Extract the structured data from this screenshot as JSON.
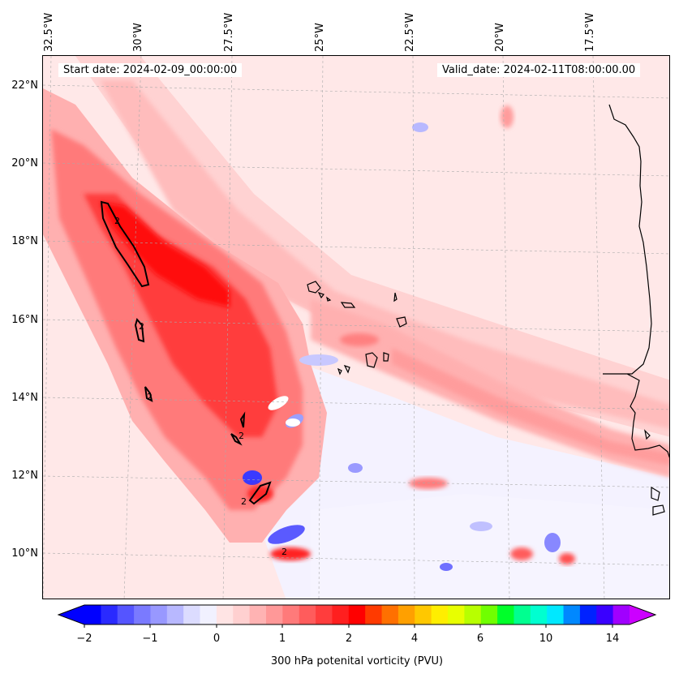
{
  "header": {
    "start_date": "Start date: 2024-02-09_00:00:00",
    "valid_date": "Valid_date: 2024-02-11T08:00:00.00"
  },
  "axes": {
    "longitude_labels": [
      "32.5°W",
      "30°W",
      "27.5°W",
      "25°W",
      "22.5°W",
      "20°W",
      "17.5°W"
    ],
    "latitude_labels": [
      "22°N",
      "20°N",
      "18°N",
      "16°N",
      "14°N",
      "12°N",
      "10°N"
    ]
  },
  "map": {
    "field": "300 hPa potential vorticity",
    "contour_level_label": "2",
    "projection_extent": {
      "lon_min": -33.0,
      "lon_max": -15.6,
      "lat_min": 8.9,
      "lat_max": 22.8
    },
    "gridlines": true,
    "coastlines": true
  },
  "colorbar": {
    "label": "300 hPa potenital vorticity (PVU)",
    "tick_labels": [
      "−2",
      "−1",
      "0",
      "1",
      "2",
      "4",
      "6",
      "10",
      "14"
    ],
    "extend": "both",
    "colors": [
      "#0000ff",
      "#2a2aff",
      "#5555ff",
      "#7a7aff",
      "#9898ff",
      "#b8b8ff",
      "#dcdcff",
      "#f1f1ff",
      "#ffe4e4",
      "#ffd0d0",
      "#ffb3b3",
      "#ff9898",
      "#ff7a7a",
      "#ff5c5c",
      "#ff3d3d",
      "#ff1f1f",
      "#ff0000",
      "#ff3a00",
      "#ff7000",
      "#ffa000",
      "#ffc800",
      "#ffee00",
      "#e8ff00",
      "#b8ff00",
      "#70ff00",
      "#00ff2a",
      "#00ff90",
      "#00ffd0",
      "#00e8ff",
      "#0088ff",
      "#0022ff",
      "#3a00ff",
      "#a000ff"
    ],
    "under_color": "#0000ff",
    "over_color": "#cc00ff"
  }
}
